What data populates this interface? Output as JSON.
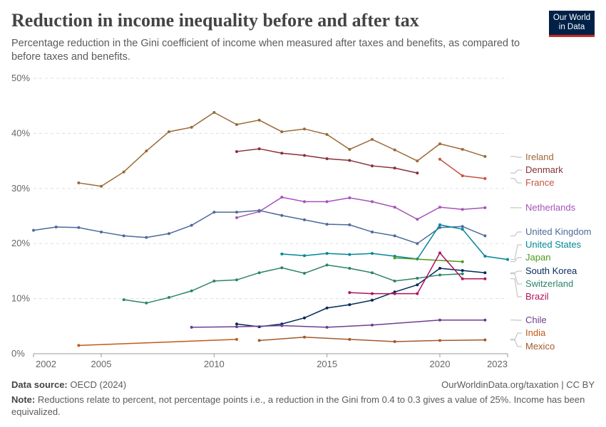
{
  "header": {
    "title": "Reduction in income inequality before and after tax",
    "subtitle": "Percentage reduction in the Gini coefficient of income when measured after taxes and benefits, as compared to before taxes and benefits.",
    "logo": "Our World in Data"
  },
  "footer": {
    "source_label": "Data source:",
    "source": "OECD (2024)",
    "license": "OurWorldinData.org/taxation | CC BY",
    "note_label": "Note:",
    "note": "Reductions relate to percent, not percentage points i.e., a reduction in the Gini from 0.4 to 0.3 gives a value of 25%. Income has been equivalized."
  },
  "chart_data": {
    "type": "line",
    "xlim": [
      2002,
      2023
    ],
    "ylim": [
      0,
      50
    ],
    "grid": true,
    "xticks": [
      "2002",
      "2005",
      "2010",
      "2015",
      "2020",
      "2023"
    ],
    "yticks": [
      "0%",
      "10%",
      "20%",
      "30%",
      "40%",
      "50%"
    ],
    "series": [
      {
        "name": "Ireland",
        "color": "#9a6a37",
        "x": [
          2004,
          2005,
          2006,
          2007,
          2008,
          2009,
          2010,
          2011,
          2012,
          2013,
          2014,
          2015,
          2016,
          2017,
          2018,
          2019,
          2020,
          2021,
          2022
        ],
        "y": [
          31.0,
          30.4,
          33.0,
          36.8,
          40.3,
          41.1,
          43.8,
          41.6,
          42.4,
          40.3,
          40.8,
          39.8,
          37.1,
          38.9,
          37.0,
          35.0,
          38.1,
          37.1,
          35.8
        ]
      },
      {
        "name": "Denmark",
        "color": "#883039",
        "x": [
          2011,
          2012,
          2013,
          2014,
          2015,
          2016,
          2017,
          2018,
          2019
        ],
        "y": [
          36.7,
          37.2,
          36.4,
          36.0,
          35.4,
          35.1,
          34.1,
          33.7,
          32.8
        ]
      },
      {
        "name": "France",
        "color": "#c5523f",
        "x": [
          2020,
          2021,
          2022
        ],
        "y": [
          35.3,
          32.3,
          31.8
        ]
      },
      {
        "name": "Netherlands",
        "color": "#a652ba",
        "x": [
          2011,
          2012,
          2013,
          2014,
          2015,
          2016,
          2017,
          2018,
          2019,
          2020,
          2021,
          2022
        ],
        "y": [
          24.7,
          25.8,
          28.4,
          27.6,
          27.6,
          28.3,
          27.6,
          26.6,
          24.4,
          26.6,
          26.2,
          26.5
        ]
      },
      {
        "name": "United Kingdom",
        "color": "#4c6a9c",
        "x": [
          2002,
          2003,
          2004,
          2005,
          2006,
          2007,
          2008,
          2009,
          2010,
          2011,
          2012,
          2013,
          2014,
          2015,
          2016,
          2017,
          2018,
          2019,
          2020,
          2021,
          2022
        ],
        "y": [
          22.4,
          23.0,
          22.9,
          22.1,
          21.4,
          21.1,
          21.8,
          23.3,
          25.7,
          25.7,
          26.0,
          25.1,
          24.3,
          23.5,
          23.4,
          22.1,
          21.4,
          20.0,
          22.9,
          23.1,
          21.4
        ]
      },
      {
        "name": "United States",
        "color": "#00879a",
        "x": [
          2013,
          2014,
          2015,
          2016,
          2017,
          2018,
          2019,
          2020,
          2021,
          2022,
          2023
        ],
        "y": [
          18.1,
          17.8,
          18.2,
          18.0,
          18.2,
          17.7,
          17.2,
          23.4,
          22.6,
          17.7,
          17.1
        ]
      },
      {
        "name": "Japan",
        "color": "#4c9a1a",
        "x": [
          2018,
          2021
        ],
        "y": [
          17.4,
          16.7
        ]
      },
      {
        "name": "South Korea",
        "color": "#00295b",
        "x": [
          2011,
          2012,
          2013,
          2014,
          2015,
          2016,
          2017,
          2018,
          2019,
          2020,
          2021,
          2022
        ],
        "y": [
          5.4,
          4.9,
          5.4,
          6.5,
          8.3,
          8.9,
          9.7,
          11.2,
          12.5,
          15.5,
          15.1,
          14.7
        ]
      },
      {
        "name": "Switzerland",
        "color": "#2c8465",
        "x": [
          2006,
          2007,
          2008,
          2009,
          2010,
          2011,
          2012,
          2013,
          2014,
          2015,
          2016,
          2017,
          2018,
          2019,
          2020,
          2021
        ],
        "y": [
          9.8,
          9.2,
          10.2,
          11.4,
          13.2,
          13.4,
          14.7,
          15.6,
          14.6,
          16.1,
          15.5,
          14.7,
          13.2,
          13.7,
          14.3,
          14.5
        ]
      },
      {
        "name": "Brazil",
        "color": "#b0125e",
        "x": [
          2016,
          2017,
          2018,
          2019,
          2020,
          2021,
          2022
        ],
        "y": [
          11.1,
          10.9,
          10.9,
          10.9,
          18.3,
          13.6,
          13.6
        ]
      },
      {
        "name": "Chile",
        "color": "#6d3e91",
        "x": [
          2009,
          2011,
          2013,
          2015,
          2017,
          2020,
          2022
        ],
        "y": [
          4.8,
          4.9,
          5.1,
          4.8,
          5.2,
          6.1,
          6.1
        ]
      },
      {
        "name": "India",
        "color": "#c05917",
        "x": [
          2004,
          2011
        ],
        "y": [
          1.5,
          2.6
        ]
      },
      {
        "name": "Mexico",
        "color": "#a2592a",
        "x": [
          2012,
          2014,
          2016,
          2018,
          2020,
          2022
        ],
        "y": [
          2.4,
          3.0,
          2.6,
          2.2,
          2.4,
          2.5
        ]
      }
    ]
  }
}
